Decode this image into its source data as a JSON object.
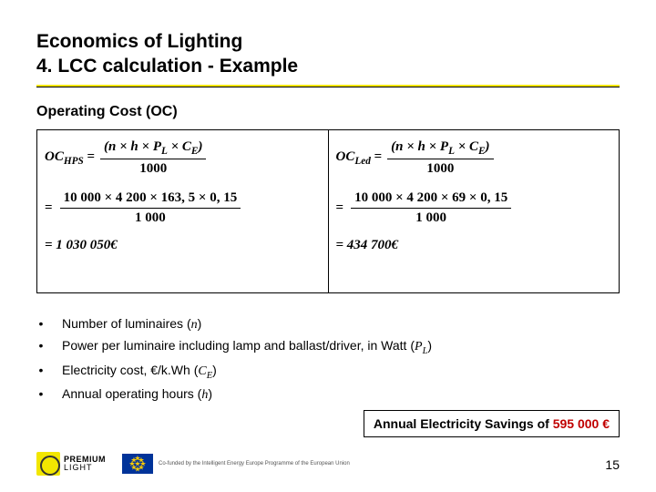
{
  "title": {
    "line1": "Economics of Lighting",
    "line2": "4. LCC calculation - Example"
  },
  "subhead": "Operating Cost (OC)",
  "formulas": {
    "left": {
      "lhs": "OC",
      "lhs_sub": "HPS",
      "top_num": "(n × h × P",
      "top_num_sub": "L",
      "top_num_tail": " × C",
      "top_num_sub2": "E",
      "top_num_close": ")",
      "top_den": "1000",
      "mid_num": "10 000 × 4 200 × 163, 5 × 0, 15",
      "mid_den": "1 000",
      "result": "= 1 030 050€"
    },
    "right": {
      "lhs": "OC",
      "lhs_sub": "Led",
      "top_num": "(n × h × P",
      "top_num_sub": "L",
      "top_num_tail": " × C",
      "top_num_sub2": "E",
      "top_num_close": ")",
      "top_den": "1000",
      "mid_num": "10 000 × 4 200 × 69 × 0, 15",
      "mid_den": "1 000",
      "result": "= 434 700€"
    }
  },
  "bullets": [
    {
      "text": "Number of luminaires (",
      "var": "n",
      "tail": ")"
    },
    {
      "text": "Power per luminaire including lamp and ballast/driver, in Watt (",
      "var": "P",
      "sub": "L",
      "tail": ")"
    },
    {
      "text": "Electricity cost, €/k.Wh (",
      "var": "C",
      "sub": "E",
      "tail": ")"
    },
    {
      "text": "Annual operating hours (",
      "var": "h",
      "tail": ")"
    }
  ],
  "callout": {
    "prefix": "Annual Electricity Savings of ",
    "amount": "595 000 €"
  },
  "footer": {
    "logo1_line1": "PREMIUM",
    "logo1_line2": "LIGHT",
    "eu_text": "Co-funded by the Intelligent Energy Europe Programme of the European Union"
  },
  "page_number": "15",
  "colors": {
    "accent_yellow": "#f2e600",
    "callout_red": "#c00000",
    "eu_blue": "#003399",
    "eu_gold": "#ffcc00"
  }
}
